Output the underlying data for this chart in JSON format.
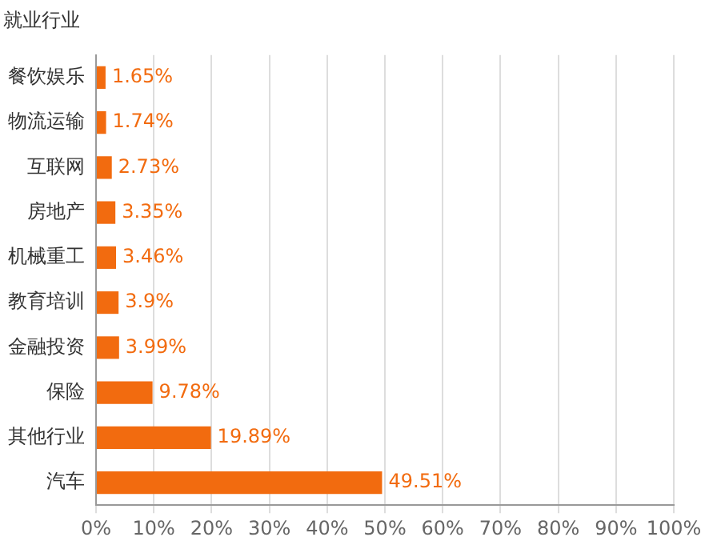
{
  "chart_data": {
    "type": "bar",
    "orientation": "horizontal",
    "title": "就业行业",
    "categories": [
      "餐饮娱乐",
      "物流运输",
      "互联网",
      "房地产",
      "机械重工",
      "教育培训",
      "金融投资",
      "保险",
      "其他行业",
      "汽车"
    ],
    "values": [
      1.65,
      1.74,
      2.73,
      3.35,
      3.46,
      3.9,
      3.99,
      9.78,
      19.89,
      49.51
    ],
    "value_labels": [
      "1.65%",
      "1.74%",
      "2.73%",
      "3.35%",
      "3.46%",
      "3.9%",
      "3.99%",
      "9.78%",
      "19.89%",
      "49.51%"
    ],
    "color": "#f26b0f",
    "xlim": [
      0,
      100
    ],
    "xticks": [
      {
        "value": 0,
        "label": "0%"
      },
      {
        "value": 10,
        "label": "10%"
      },
      {
        "value": 20,
        "label": "20%"
      },
      {
        "value": 30,
        "label": "30%"
      },
      {
        "value": 40,
        "label": "40%"
      },
      {
        "value": 50,
        "label": "50%"
      },
      {
        "value": 60,
        "label": "60%"
      },
      {
        "value": 70,
        "label": "70%"
      },
      {
        "value": 80,
        "label": "80%"
      },
      {
        "value": 90,
        "label": "90%"
      },
      {
        "value": 100,
        "label": "100%"
      }
    ],
    "grid": "x",
    "legend": false
  }
}
